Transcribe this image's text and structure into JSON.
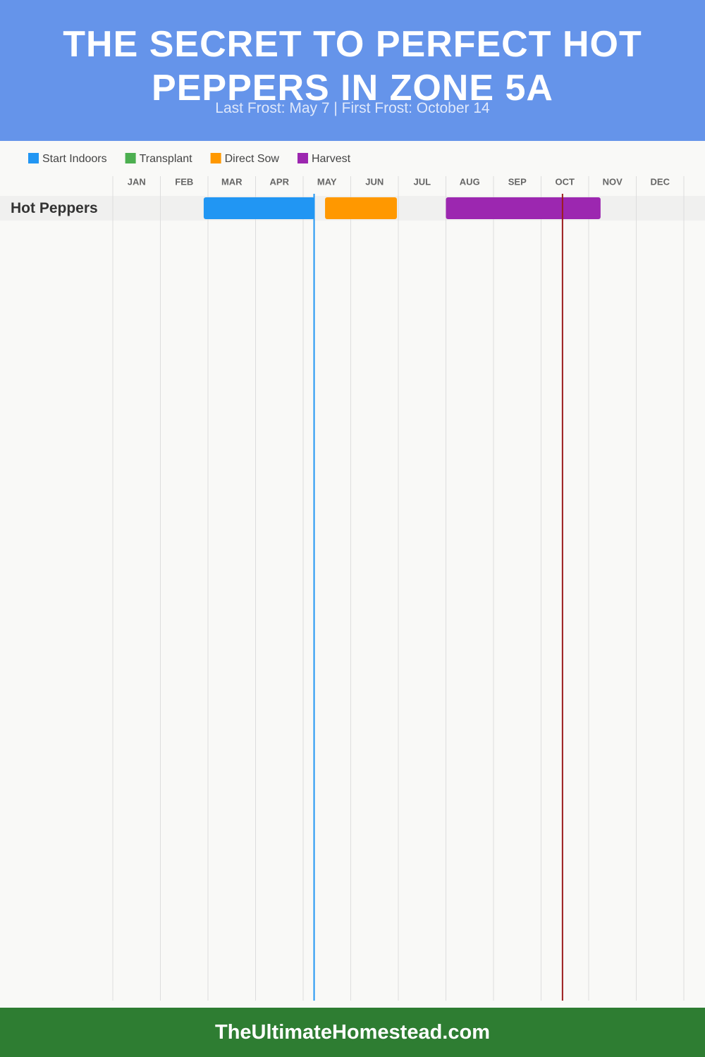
{
  "chart_data": {
    "type": "gantt",
    "title": "THE SECRET TO PERFECT HOT PEPPERS IN ZONE 5A",
    "subtitle": "Last Frost: May 7 | First Frost: October 14",
    "footer": "TheUltimateHomestead.com",
    "categories": [
      "JAN",
      "FEB",
      "MAR",
      "APR",
      "MAY",
      "JUN",
      "JUL",
      "AUG",
      "SEP",
      "OCT",
      "NOV",
      "DEC"
    ],
    "xlim": [
      0,
      12
    ],
    "grid": true,
    "series": [
      {
        "name": "Start Indoors",
        "color": "#2196f3"
      },
      {
        "name": "Transplant",
        "color": "#4caf50"
      },
      {
        "name": "Direct Sow",
        "color": "#ff9800"
      },
      {
        "name": "Harvest",
        "color": "#9c27b0"
      }
    ],
    "rows": [
      {
        "name": "Hot Peppers",
        "bars": [
          {
            "series": 0,
            "start": 1.91,
            "end": 4.24
          },
          {
            "series": 2,
            "start": 4.46,
            "end": 5.97
          },
          {
            "series": 3,
            "start": 7.0,
            "end": 10.25
          }
        ]
      }
    ],
    "markers": [
      {
        "value": 4.23,
        "color": "#2196f3"
      },
      {
        "value": 9.45,
        "color": "#9b1c1c"
      }
    ]
  }
}
